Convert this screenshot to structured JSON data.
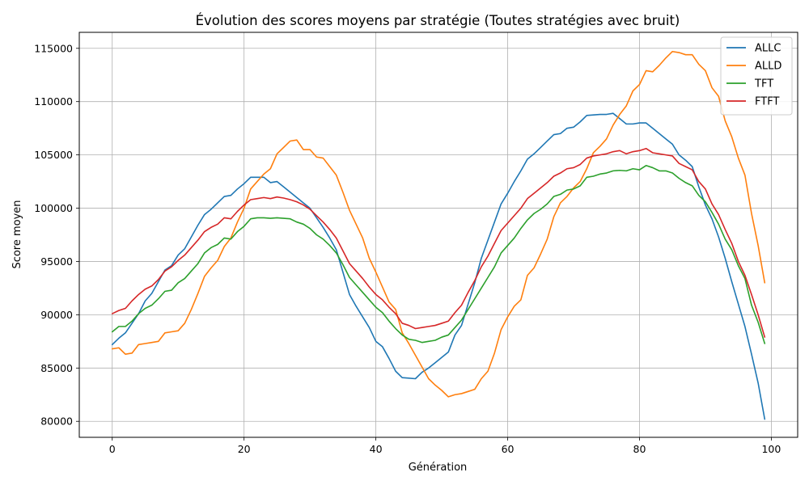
{
  "chart_data": {
    "type": "line",
    "title": "Évolution des scores moyens par stratégie (Toutes stratégies avec bruit)",
    "xlabel": "Génération",
    "ylabel": "Score moyen",
    "xlim": [
      -5,
      104
    ],
    "ylim": [
      78500,
      116500
    ],
    "x_ticks": [
      0,
      20,
      40,
      60,
      80,
      100
    ],
    "x_tick_labels": [
      "0",
      "20",
      "40",
      "60",
      "80",
      "100"
    ],
    "y_ticks": [
      80000,
      85000,
      90000,
      95000,
      100000,
      105000,
      110000,
      115000
    ],
    "y_tick_labels": [
      "80000",
      "85000",
      "90000",
      "95000",
      "100000",
      "105000",
      "110000",
      "115000"
    ],
    "grid": true,
    "legend_position": "top-right",
    "x": [
      0,
      1,
      2,
      3,
      4,
      5,
      6,
      7,
      8,
      9,
      10,
      11,
      12,
      13,
      14,
      15,
      16,
      17,
      18,
      19,
      20,
      21,
      22,
      23,
      24,
      25,
      26,
      27,
      28,
      29,
      30,
      31,
      32,
      33,
      34,
      35,
      36,
      37,
      38,
      39,
      40,
      41,
      42,
      43,
      44,
      45,
      46,
      47,
      48,
      49,
      50,
      51,
      52,
      53,
      54,
      55,
      56,
      57,
      58,
      59,
      60,
      61,
      62,
      63,
      64,
      65,
      66,
      67,
      68,
      69,
      70,
      71,
      72,
      73,
      74,
      75,
      76,
      77,
      78,
      79,
      80,
      81,
      82,
      83,
      84,
      85,
      86,
      87,
      88,
      89,
      90,
      91,
      92,
      93,
      94,
      95,
      96,
      97,
      98,
      99
    ],
    "series": [
      {
        "name": "ALLC",
        "color": "#1f77b4",
        "values": [
          87200,
          87800,
          88300,
          89200,
          90100,
          91300,
          92000,
          93100,
          94200,
          94600,
          95600,
          96200,
          97300,
          98400,
          99400,
          99900,
          100500,
          101100,
          101200,
          101800,
          102300,
          102900,
          102900,
          102900,
          102400,
          102500,
          102000,
          101500,
          101000,
          100500,
          100000,
          99100,
          98200,
          97200,
          96100,
          94000,
          91900,
          90800,
          89800,
          88800,
          87500,
          87000,
          85900,
          84700,
          84100,
          84050,
          84000,
          84600,
          85000,
          85500,
          86000,
          86500,
          88100,
          89000,
          91000,
          93000,
          95300,
          97000,
          98700,
          100400,
          101400,
          102500,
          103500,
          104600,
          105100,
          105700,
          106300,
          106900,
          107000,
          107500,
          107600,
          108100,
          108700,
          108750,
          108800,
          108800,
          108900,
          108400,
          107900,
          107900,
          108000,
          108000,
          107500,
          107000,
          106500,
          106000,
          105000,
          104500,
          103900,
          102000,
          100300,
          99000,
          97300,
          95300,
          93100,
          91000,
          88900,
          86300,
          83600,
          80200
        ]
      },
      {
        "name": "ALLD",
        "color": "#ff7f0e",
        "values": [
          86800,
          86900,
          86300,
          86400,
          87200,
          87300,
          87400,
          87500,
          88300,
          88400,
          88500,
          89200,
          90500,
          92000,
          93600,
          94400,
          95100,
          96400,
          97200,
          98700,
          100000,
          101800,
          102500,
          103200,
          103700,
          105100,
          105700,
          106300,
          106400,
          105500,
          105500,
          104800,
          104700,
          103900,
          103100,
          101500,
          99800,
          98500,
          97200,
          95300,
          94000,
          92600,
          91200,
          90500,
          88300,
          87300,
          86200,
          85100,
          84000,
          83400,
          82900,
          82300,
          82500,
          82600,
          82800,
          83000,
          84000,
          84700,
          86400,
          88600,
          89800,
          90800,
          91400,
          93700,
          94400,
          95700,
          97100,
          99200,
          100500,
          101100,
          101900,
          102500,
          103700,
          105200,
          105800,
          106500,
          107800,
          108800,
          109600,
          111000,
          111600,
          112900,
          112800,
          113400,
          114100,
          114700,
          114600,
          114400,
          114400,
          113500,
          112900,
          111300,
          110500,
          108200,
          106700,
          104700,
          103100,
          99500,
          96500,
          93000
        ]
      },
      {
        "name": "TFT",
        "color": "#2ca02c",
        "values": [
          88400,
          88900,
          88900,
          89400,
          90100,
          90600,
          90900,
          91500,
          92200,
          92300,
          93000,
          93400,
          94100,
          94800,
          95800,
          96300,
          96600,
          97200,
          97100,
          97800,
          98300,
          99000,
          99100,
          99100,
          99050,
          99100,
          99050,
          99000,
          98700,
          98500,
          98100,
          97500,
          97100,
          96500,
          95800,
          94700,
          93500,
          92800,
          92100,
          91400,
          90700,
          90200,
          89400,
          88700,
          88100,
          87700,
          87600,
          87400,
          87500,
          87600,
          87900,
          88100,
          88800,
          89500,
          90500,
          91500,
          92500,
          93500,
          94500,
          95800,
          96500,
          97200,
          98100,
          98900,
          99500,
          99900,
          100400,
          101100,
          101300,
          101700,
          101800,
          102100,
          102900,
          103000,
          103200,
          103300,
          103500,
          103550,
          103500,
          103700,
          103600,
          104000,
          103800,
          103500,
          103500,
          103300,
          102800,
          102400,
          102100,
          101200,
          100600,
          99600,
          98500,
          97100,
          96100,
          94600,
          93400,
          90900,
          89300,
          87300
        ]
      },
      {
        "name": "FTFT",
        "color": "#d62728",
        "values": [
          90100,
          90400,
          90600,
          91300,
          91900,
          92400,
          92700,
          93300,
          94100,
          94500,
          95100,
          95600,
          96300,
          97000,
          97800,
          98200,
          98500,
          99100,
          99000,
          99700,
          100300,
          100800,
          100900,
          101000,
          100900,
          101050,
          100950,
          100800,
          100600,
          100300,
          99900,
          99300,
          98700,
          98000,
          97200,
          96000,
          94800,
          94100,
          93400,
          92600,
          91900,
          91400,
          90700,
          90100,
          89200,
          89000,
          88700,
          88800,
          88900,
          89000,
          89200,
          89400,
          90200,
          90900,
          92100,
          93200,
          94500,
          95500,
          96700,
          97900,
          98600,
          99300,
          100000,
          100900,
          101400,
          101900,
          102400,
          103000,
          103300,
          103700,
          103800,
          104100,
          104700,
          104900,
          105000,
          105100,
          105300,
          105400,
          105100,
          105300,
          105400,
          105600,
          105200,
          105100,
          105000,
          104900,
          104200,
          103900,
          103600,
          102500,
          101800,
          100400,
          99400,
          98000,
          96700,
          95000,
          93700,
          91900,
          90000,
          87900
        ]
      }
    ]
  }
}
